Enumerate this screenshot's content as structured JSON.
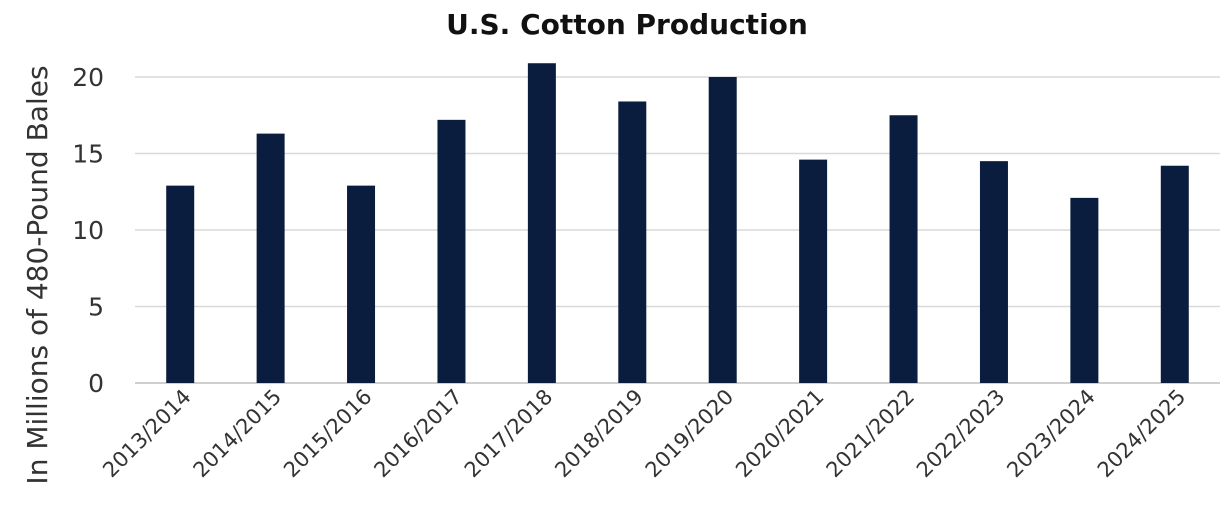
{
  "chart_data": {
    "type": "bar",
    "title": "U.S. Cotton Production",
    "xlabel": "",
    "ylabel": "In Millions of 480-Pound Bales",
    "categories": [
      "2013/2014",
      "2014/2015",
      "2015/2016",
      "2016/2017",
      "2017/2018",
      "2018/2019",
      "2019/2020",
      "2020/2021",
      "2021/2022",
      "2022/2023",
      "2023/2024",
      "2024/2025"
    ],
    "values": [
      12.9,
      16.3,
      12.9,
      17.2,
      20.9,
      18.4,
      20.0,
      14.6,
      17.5,
      14.5,
      12.1,
      14.2
    ],
    "yticks": [
      "0",
      "5",
      "10",
      "15",
      "20"
    ],
    "ylim": [
      0,
      22
    ],
    "grid": true,
    "legend": "none",
    "bar_color": "#0b1d3f"
  }
}
